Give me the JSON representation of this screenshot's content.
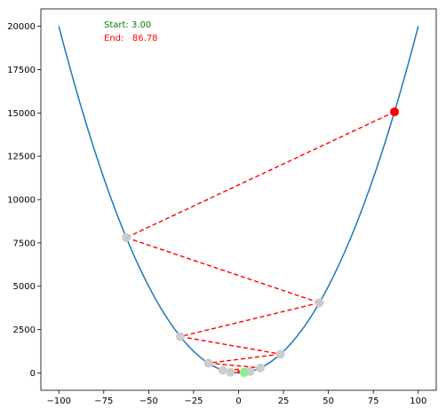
{
  "chart_data": {
    "type": "line",
    "title": "",
    "xlabel": "",
    "ylabel": "",
    "xlim": [
      -110,
      110
    ],
    "ylim": [
      -1000,
      21000
    ],
    "x_ticks": [
      -100,
      -75,
      -50,
      -25,
      0,
      25,
      50,
      75,
      100
    ],
    "x_tick_labels": [
      "−100",
      "−75",
      "−50",
      "−25",
      "0",
      "25",
      "50",
      "75",
      "100"
    ],
    "y_ticks": [
      0,
      2500,
      5000,
      7500,
      10000,
      12500,
      15000,
      17500,
      20000
    ],
    "y_tick_labels": [
      "0",
      "2500",
      "5000",
      "7500",
      "10000",
      "12500",
      "15000",
      "17500",
      "20000"
    ],
    "grid": false,
    "curve": {
      "function": "y = 2 * x^2",
      "x_range": [
        -100,
        100
      ],
      "color": "#1f77b4"
    },
    "iterations": {
      "x": [
        86.78,
        -62.48,
        44.99,
        -32.39,
        23.32,
        -16.79,
        12.09,
        -8.7,
        6.27,
        -4.51,
        3.0
      ],
      "line_color": "#ff0000",
      "line_style": "dashed",
      "point_color": "#cccccc"
    },
    "start_point": {
      "x": 3.0,
      "color": "#90ee90"
    },
    "end_point": {
      "x": 86.78,
      "color": "#ff0000"
    },
    "annotations": {
      "start_text": "Start: 3.00",
      "start_color": "#008000",
      "end_text": "End:   86.78",
      "end_color": "#ff0000"
    }
  }
}
